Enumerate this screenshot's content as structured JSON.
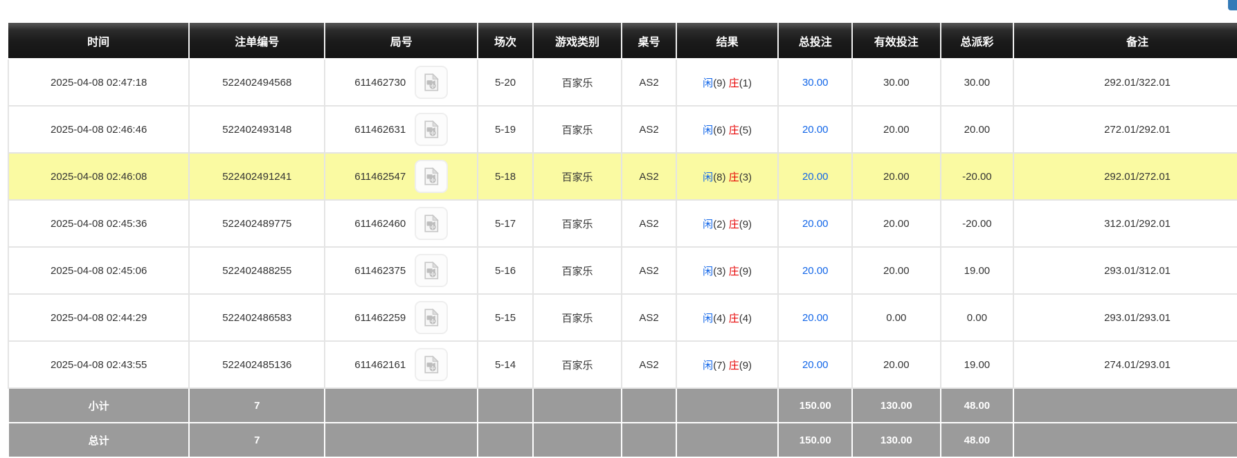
{
  "colors": {
    "link_blue": "#1266e8",
    "result_player_blue": "#1266e8",
    "result_banker_red": "#e60000",
    "negative_red": "#e60000",
    "highlight_yellow": "#fafaa2",
    "summary_gray": "#9b9b9b",
    "header_black": "#1a1a1a",
    "corner_button_blue": "#337ab7"
  },
  "icons": {
    "round_video": "video-replay-icon"
  },
  "table": {
    "columns": [
      {
        "key": "time",
        "label": "时间"
      },
      {
        "key": "bet_id",
        "label": "注单编号"
      },
      {
        "key": "round_id",
        "label": "局号"
      },
      {
        "key": "session",
        "label": "场次"
      },
      {
        "key": "game_type",
        "label": "游戏类别"
      },
      {
        "key": "table_no",
        "label": "桌号"
      },
      {
        "key": "result",
        "label": "结果"
      },
      {
        "key": "total_bet",
        "label": "总投注"
      },
      {
        "key": "valid_bet",
        "label": "有效投注"
      },
      {
        "key": "total_payout",
        "label": "总派彩"
      },
      {
        "key": "remark",
        "label": "备注"
      }
    ],
    "result_labels": {
      "player": "闲",
      "banker": "庄"
    },
    "rows": [
      {
        "time": "2025-04-08 02:47:18",
        "bet_id": "522402494568",
        "round_id": "611462730",
        "session": "5-20",
        "game_type": "百家乐",
        "table_no": "AS2",
        "result": {
          "player_score": "(9)",
          "banker_score": "(1)"
        },
        "total_bet": "30.00",
        "valid_bet": "30.00",
        "total_payout": "30.00",
        "remark": "292.01/322.01",
        "highlighted": false
      },
      {
        "time": "2025-04-08 02:46:46",
        "bet_id": "522402493148",
        "round_id": "611462631",
        "session": "5-19",
        "game_type": "百家乐",
        "table_no": "AS2",
        "result": {
          "player_score": "(6)",
          "banker_score": "(5)"
        },
        "total_bet": "20.00",
        "valid_bet": "20.00",
        "total_payout": "20.00",
        "remark": "272.01/292.01",
        "highlighted": false
      },
      {
        "time": "2025-04-08 02:46:08",
        "bet_id": "522402491241",
        "round_id": "611462547",
        "session": "5-18",
        "game_type": "百家乐",
        "table_no": "AS2",
        "result": {
          "player_score": "(8)",
          "banker_score": "(3)"
        },
        "total_bet": "20.00",
        "valid_bet": "20.00",
        "total_payout": "-20.00",
        "remark": "292.01/272.01",
        "highlighted": true
      },
      {
        "time": "2025-04-08 02:45:36",
        "bet_id": "522402489775",
        "round_id": "611462460",
        "session": "5-17",
        "game_type": "百家乐",
        "table_no": "AS2",
        "result": {
          "player_score": "(2)",
          "banker_score": "(9)"
        },
        "total_bet": "20.00",
        "valid_bet": "20.00",
        "total_payout": "-20.00",
        "remark": "312.01/292.01",
        "highlighted": false
      },
      {
        "time": "2025-04-08 02:45:06",
        "bet_id": "522402488255",
        "round_id": "611462375",
        "session": "5-16",
        "game_type": "百家乐",
        "table_no": "AS2",
        "result": {
          "player_score": "(3)",
          "banker_score": "(9)"
        },
        "total_bet": "20.00",
        "valid_bet": "20.00",
        "total_payout": "19.00",
        "remark": "293.01/312.01",
        "highlighted": false
      },
      {
        "time": "2025-04-08 02:44:29",
        "bet_id": "522402486583",
        "round_id": "611462259",
        "session": "5-15",
        "game_type": "百家乐",
        "table_no": "AS2",
        "result": {
          "player_score": "(4)",
          "banker_score": "(4)"
        },
        "total_bet": "20.00",
        "valid_bet": "0.00",
        "total_payout": "0.00",
        "remark": "293.01/293.01",
        "highlighted": false
      },
      {
        "time": "2025-04-08 02:43:55",
        "bet_id": "522402485136",
        "round_id": "611462161",
        "session": "5-14",
        "game_type": "百家乐",
        "table_no": "AS2",
        "result": {
          "player_score": "(7)",
          "banker_score": "(9)"
        },
        "total_bet": "20.00",
        "valid_bet": "20.00",
        "total_payout": "19.00",
        "remark": "274.01/293.01",
        "highlighted": false
      }
    ],
    "summary_rows": [
      {
        "label": "小计",
        "count": "7",
        "total_bet": "150.00",
        "valid_bet": "130.00",
        "total_payout": "48.00"
      },
      {
        "label": "总计",
        "count": "7",
        "total_bet": "150.00",
        "valid_bet": "130.00",
        "total_payout": "48.00"
      }
    ]
  }
}
